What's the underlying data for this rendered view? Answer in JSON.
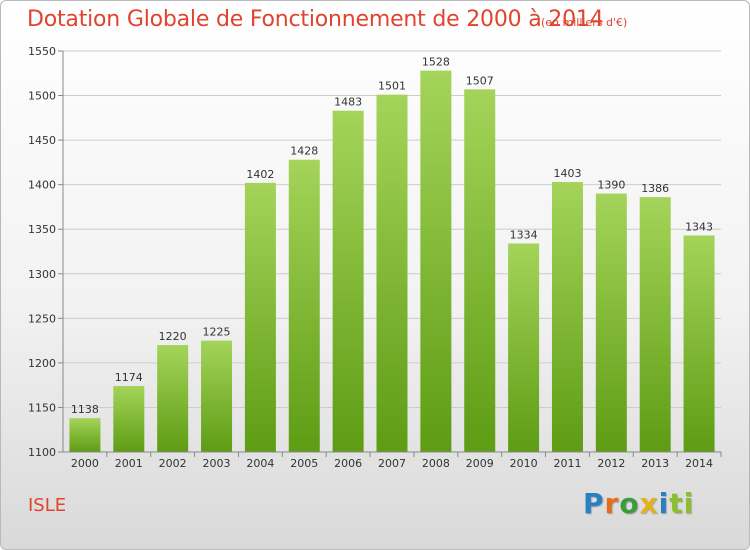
{
  "header": {
    "title": "Dotation Globale de Fonctionnement de 2000 à 2014",
    "unit": "(en milliers d'€)"
  },
  "place": "ISLE",
  "logo": {
    "text": "Proxiti",
    "letters": [
      "P",
      "r",
      "o",
      "x",
      "i",
      "ti"
    ]
  },
  "colors": {
    "bar_light": "#a4d45a",
    "bar_dark": "#5e9c14",
    "title": "#e0442e",
    "grid": "#cccccc"
  },
  "chart_data": {
    "type": "bar",
    "title": "Dotation Globale de Fonctionnement de 2000 à 2014",
    "subtitle": "(en milliers d'€)",
    "categories": [
      "2000",
      "2001",
      "2002",
      "2003",
      "2004",
      "2005",
      "2006",
      "2007",
      "2008",
      "2009",
      "2010",
      "2011",
      "2012",
      "2013",
      "2014"
    ],
    "values": [
      1138,
      1174,
      1220,
      1225,
      1402,
      1428,
      1483,
      1501,
      1528,
      1507,
      1334,
      1403,
      1390,
      1386,
      1343
    ],
    "ylim": [
      1100,
      1550
    ],
    "yticks": [
      1100,
      1150,
      1200,
      1250,
      1300,
      1350,
      1400,
      1450,
      1500,
      1550
    ],
    "grid": true,
    "data_labels": true
  }
}
